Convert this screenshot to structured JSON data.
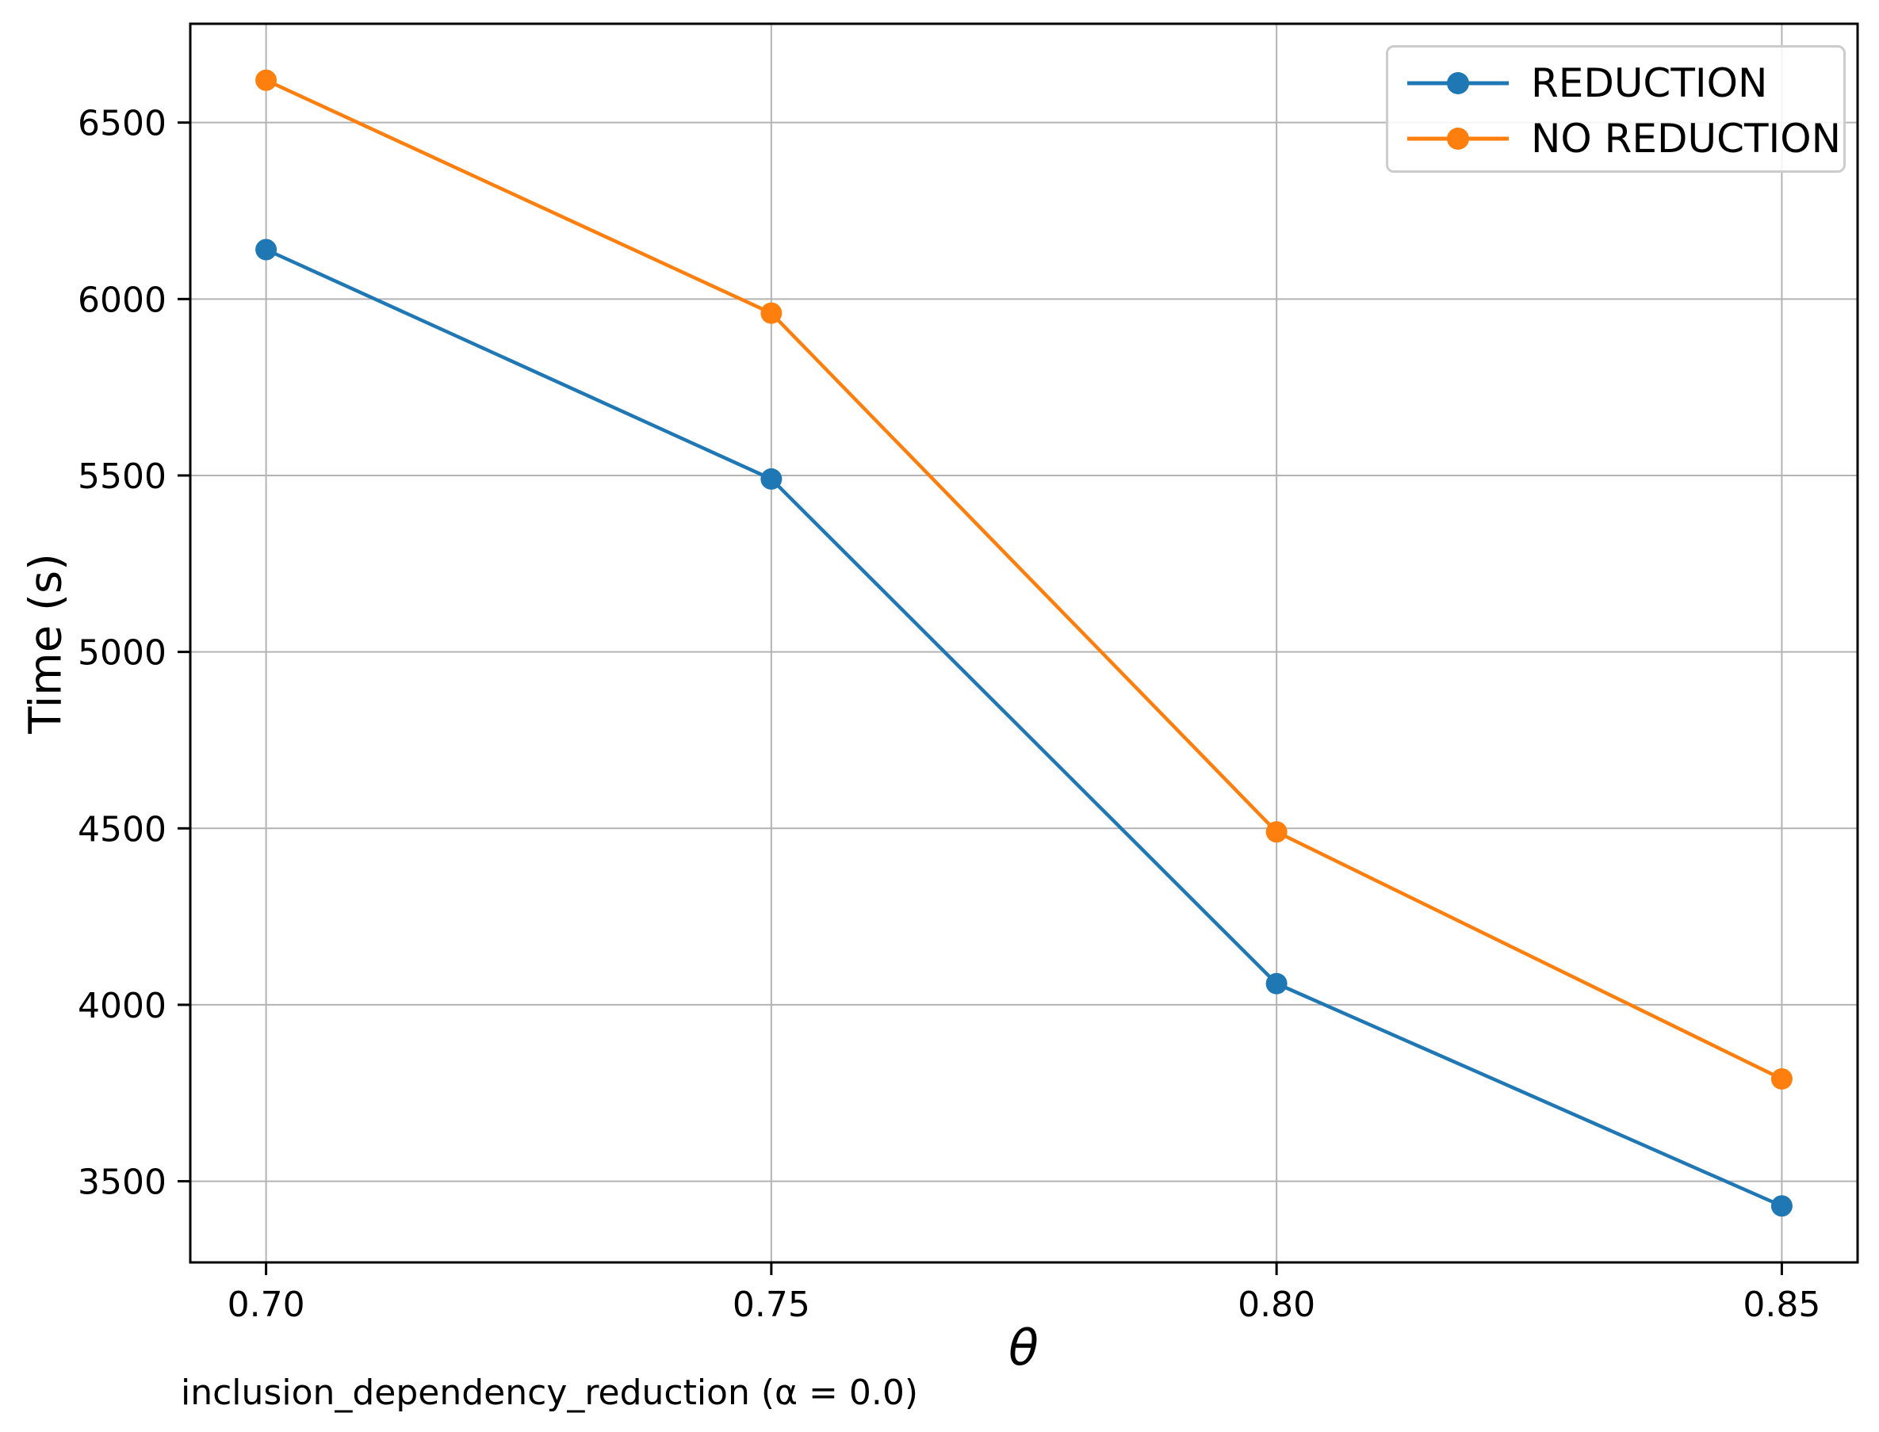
{
  "chart_data": {
    "type": "line",
    "x": [
      0.7,
      0.75,
      0.8,
      0.85
    ],
    "series": [
      {
        "name": "REDUCTION",
        "color": "#1f77b4",
        "values": [
          6140,
          5490,
          4060,
          3430
        ]
      },
      {
        "name": "NO REDUCTION",
        "color": "#ff7f0e",
        "values": [
          6620,
          5960,
          4490,
          3790
        ]
      }
    ],
    "title": "",
    "xlabel": "θ",
    "ylabel": "Time (s)",
    "caption": "inclusion_dependency_reduction (α = 0.0)",
    "xlim": [
      0.6925,
      0.8575
    ],
    "ylim": [
      3270,
      6780
    ],
    "xticks": {
      "values": [
        0.7,
        0.75,
        0.8,
        0.85
      ],
      "labels": [
        "0.70",
        "0.75",
        "0.80",
        "0.85"
      ]
    },
    "yticks": {
      "values": [
        3500,
        4000,
        4500,
        5000,
        5500,
        6000,
        6500
      ],
      "labels": [
        "3500",
        "4000",
        "4500",
        "5000",
        "5500",
        "6000",
        "6500"
      ]
    },
    "grid": true,
    "legend_position": "upper right",
    "colors": {
      "grid": "#b3b3b3",
      "spine": "#000000",
      "text": "#000000",
      "legend_border": "#cccccc",
      "background": "#ffffff"
    }
  }
}
